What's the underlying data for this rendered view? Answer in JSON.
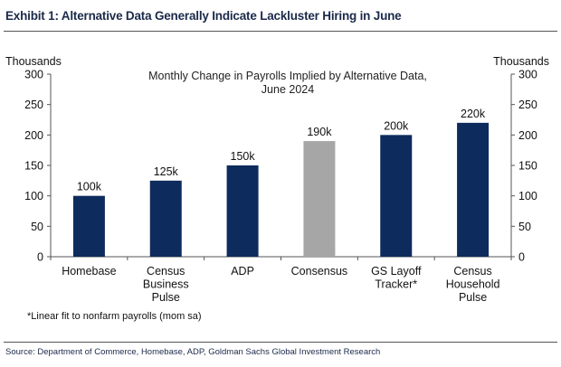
{
  "exhibit_title": "Exhibit 1: Alternative Data Generally Indicate Lackluster Hiring in June",
  "source": "Source: Department of Commerce, Homebase, ADP, Goldman Sachs Global Investment Research",
  "footnote": "*Linear fit to nonfarm payrolls (mom sa)",
  "colors": {
    "primary_bar": "#0d2b5c",
    "consensus_bar": "#a6a6a6",
    "axis": "#555555"
  },
  "chart_data": {
    "type": "bar",
    "title_lines": [
      "Monthly Change in Payrolls Implied by Alternative Data,",
      "June 2024"
    ],
    "ylabel_left": "Thousands",
    "ylabel_right": "Thousands",
    "ylim": [
      0,
      300
    ],
    "yticks": [
      0,
      50,
      100,
      150,
      200,
      250,
      300
    ],
    "categories": [
      [
        "Homebase"
      ],
      [
        "Census",
        "Business",
        "Pulse"
      ],
      [
        "ADP"
      ],
      [
        "Consensus"
      ],
      [
        "GS Layoff",
        "Tracker*"
      ],
      [
        "Census",
        "Household",
        "Pulse"
      ]
    ],
    "values": [
      100,
      125,
      150,
      190,
      200,
      220
    ],
    "data_labels": [
      "100k",
      "125k",
      "150k",
      "190k",
      "200k",
      "220k"
    ],
    "bar_styles": [
      "primary",
      "primary",
      "primary",
      "consensus",
      "primary",
      "primary"
    ],
    "grid": false,
    "legend": "none"
  }
}
